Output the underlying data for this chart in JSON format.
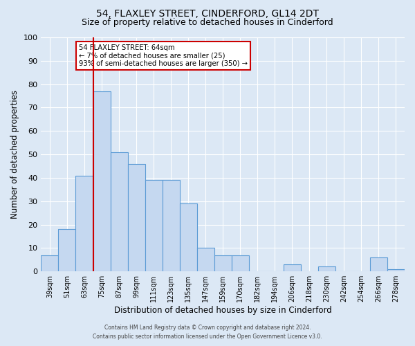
{
  "title": "54, FLAXLEY STREET, CINDERFORD, GL14 2DT",
  "subtitle": "Size of property relative to detached houses in Cinderford",
  "xlabel": "Distribution of detached houses by size in Cinderford",
  "ylabel": "Number of detached properties",
  "bin_labels": [
    "39sqm",
    "51sqm",
    "63sqm",
    "75sqm",
    "87sqm",
    "99sqm",
    "111sqm",
    "123sqm",
    "135sqm",
    "147sqm",
    "159sqm",
    "170sqm",
    "182sqm",
    "194sqm",
    "206sqm",
    "218sqm",
    "230sqm",
    "242sqm",
    "254sqm",
    "266sqm",
    "278sqm"
  ],
  "bar_values": [
    7,
    18,
    41,
    77,
    51,
    46,
    39,
    39,
    29,
    10,
    7,
    7,
    0,
    0,
    3,
    0,
    2,
    0,
    0,
    6,
    1
  ],
  "bar_color": "#c5d8f0",
  "bar_edge_color": "#5b9bd5",
  "vline_x": 2.5,
  "vline_color": "#cc0000",
  "annotation_text": "54 FLAXLEY STREET: 64sqm\n← 7% of detached houses are smaller (25)\n93% of semi-detached houses are larger (350) →",
  "annotation_box_color": "#cc0000",
  "ylim": [
    0,
    100
  ],
  "yticks": [
    0,
    10,
    20,
    30,
    40,
    50,
    60,
    70,
    80,
    90,
    100
  ],
  "bg_color": "#dce8f5",
  "plot_bg_color": "#dce8f5",
  "footer_line1": "Contains HM Land Registry data © Crown copyright and database right 2024.",
  "footer_line2": "Contains public sector information licensed under the Open Government Licence v3.0.",
  "title_fontsize": 10,
  "subtitle_fontsize": 9,
  "xlabel_fontsize": 8.5,
  "ylabel_fontsize": 8.5
}
